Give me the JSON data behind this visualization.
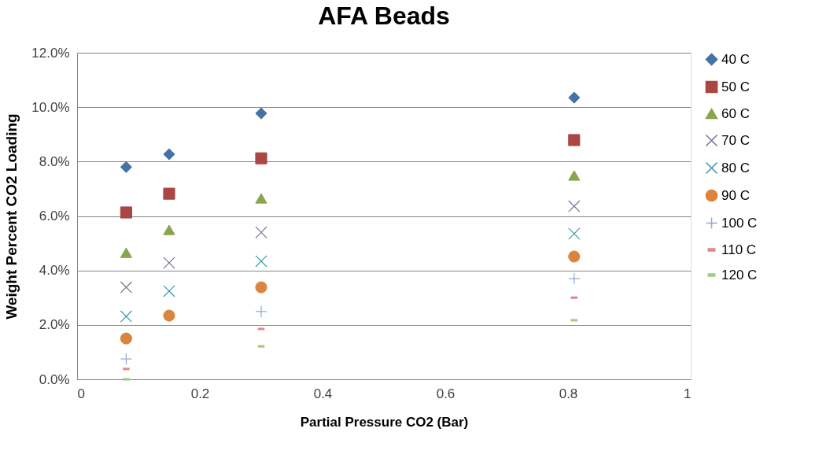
{
  "chart_data": {
    "type": "scatter",
    "title": "AFA Beads",
    "xlabel": "Partial Pressure CO2 (Bar)",
    "ylabel": "Weight Percent CO2 Loading",
    "x": [
      0.08,
      0.15,
      0.3,
      0.81
    ],
    "series": [
      {
        "name": "40 C",
        "color": "#4572a7",
        "marker": "diamond",
        "values": [
          7.8,
          8.27,
          9.77,
          10.35
        ]
      },
      {
        "name": "50 C",
        "color": "#aa4643",
        "marker": "square",
        "values": [
          6.13,
          6.82,
          8.12,
          8.79
        ]
      },
      {
        "name": "60 C",
        "color": "#89a54e",
        "marker": "triangle",
        "values": [
          4.65,
          5.49,
          6.65,
          7.49
        ]
      },
      {
        "name": "70 C",
        "color": "#80699b",
        "marker": "cross",
        "values": [
          3.38,
          4.28,
          5.4,
          6.36
        ]
      },
      {
        "name": "80 C",
        "color": "#3d96ae",
        "marker": "cross",
        "values": [
          2.31,
          3.24,
          4.34,
          5.35
        ]
      },
      {
        "name": "90 C",
        "color": "#db843d",
        "marker": "circle",
        "values": [
          1.5,
          2.34,
          3.38,
          4.51
        ]
      },
      {
        "name": "100 C",
        "color": "#92a8cd",
        "marker": "plus",
        "values": [
          0.75,
          null,
          2.49,
          3.7
        ]
      },
      {
        "name": "110 C",
        "color": "#e0888a",
        "values": [
          0.38,
          null,
          1.85,
          3.0
        ]
      },
      {
        "name": "120 C",
        "color": "#a4c97f",
        "values": [
          0.0,
          null,
          1.21,
          2.17
        ]
      }
    ],
    "xlim": [
      0,
      1
    ],
    "xticks": [
      0,
      0.2,
      0.4,
      0.6,
      0.8,
      1
    ],
    "ylim": [
      0,
      12
    ],
    "yticks": [
      {
        "value": 0,
        "label": "0.0%"
      },
      {
        "value": 2,
        "label": "2.0%"
      },
      {
        "value": 4,
        "label": "4.0%"
      },
      {
        "value": 6,
        "label": "6.0%"
      },
      {
        "value": 8,
        "label": "8.0%"
      },
      {
        "value": 10,
        "label": "10.0%"
      },
      {
        "value": 12,
        "label": "12.0%"
      }
    ],
    "grid": "y",
    "legend": "right"
  }
}
